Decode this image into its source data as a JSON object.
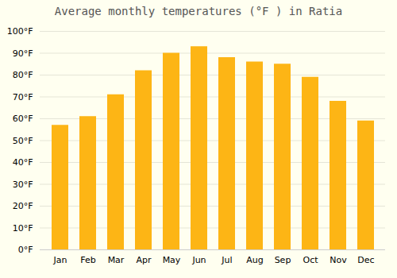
{
  "chart_data": {
    "type": "bar",
    "title": "Average monthly temperatures (°F ) in Ratia",
    "categories": [
      "Jan",
      "Feb",
      "Mar",
      "Apr",
      "May",
      "Jun",
      "Jul",
      "Aug",
      "Sep",
      "Oct",
      "Nov",
      "Dec"
    ],
    "values": [
      57,
      61,
      71,
      82,
      90,
      93,
      88,
      86,
      85,
      79,
      68,
      59
    ],
    "color": "#FDB515",
    "ylim": [
      0,
      100
    ],
    "yticks": [
      {
        "value": 0,
        "label": "0°F"
      },
      {
        "value": 10,
        "label": "10°F"
      },
      {
        "value": 20,
        "label": "20°F"
      },
      {
        "value": 30,
        "label": "30°F"
      },
      {
        "value": 40,
        "label": "40°F"
      },
      {
        "value": 50,
        "label": "50°F"
      },
      {
        "value": 60,
        "label": "60°F"
      },
      {
        "value": 70,
        "label": "70°F"
      },
      {
        "value": 80,
        "label": "80°F"
      },
      {
        "value": 90,
        "label": "90°F"
      },
      {
        "value": 100,
        "label": "100°F"
      }
    ],
    "grid": true
  }
}
